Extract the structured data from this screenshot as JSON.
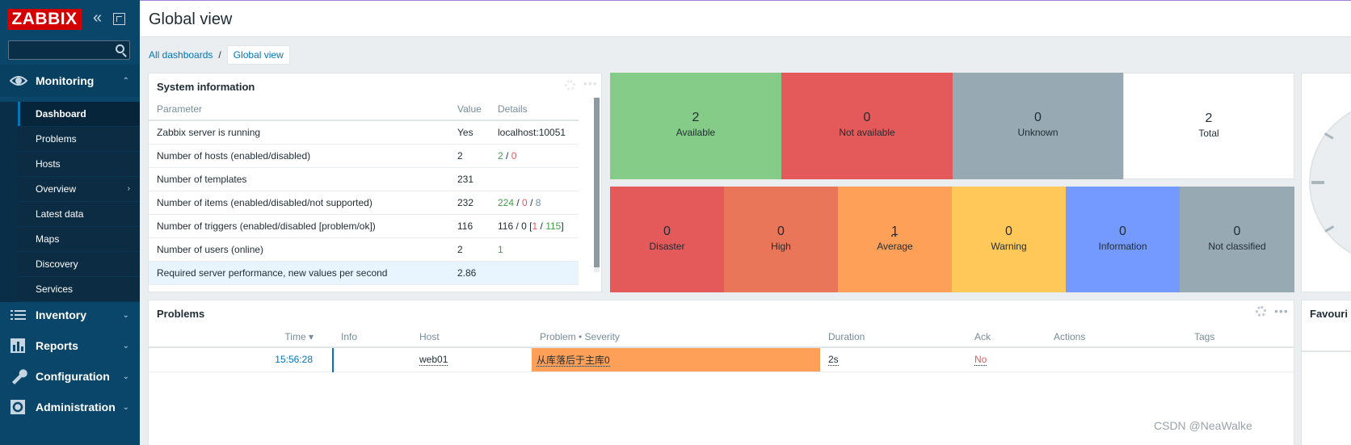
{
  "sidebar": {
    "logo": "ZABBIX",
    "collapse_icon": "«",
    "search_placeholder": "",
    "monitoring": {
      "label": "Monitoring",
      "chevron": "⌃"
    },
    "monitoring_items": [
      {
        "label": "Dashboard"
      },
      {
        "label": "Problems"
      },
      {
        "label": "Hosts"
      },
      {
        "label": "Overview",
        "chevron": "›"
      },
      {
        "label": "Latest data"
      },
      {
        "label": "Maps"
      },
      {
        "label": "Discovery"
      },
      {
        "label": "Services"
      }
    ],
    "sections": [
      {
        "label": "Inventory",
        "icon": "list-icon",
        "chevron": "⌄"
      },
      {
        "label": "Reports",
        "icon": "bar-chart-icon",
        "chevron": "⌄"
      },
      {
        "label": "Configuration",
        "icon": "wrench-icon",
        "chevron": "⌄"
      },
      {
        "label": "Administration",
        "icon": "cog-box-icon",
        "chevron": "⌄"
      }
    ]
  },
  "header": {
    "title": "Global view"
  },
  "breadcrumb": {
    "root": "All dashboards",
    "separator": "/",
    "current": "Global view"
  },
  "system_info": {
    "title": "System information",
    "columns": [
      "Parameter",
      "Value",
      "Details"
    ],
    "rows": [
      {
        "param": "Zabbix server is running",
        "value": "Yes",
        "details": "localhost:10051"
      },
      {
        "param": "Number of hosts (enabled/disabled)",
        "value": "2",
        "d1": "2",
        "s1": " / ",
        "d2": "0"
      },
      {
        "param": "Number of templates",
        "value": "231"
      },
      {
        "param": "Number of items (enabled/disabled/not supported)",
        "value": "232",
        "d1": "224",
        "s1": " / ",
        "d2": "0",
        "s2": " / ",
        "d3": "8"
      },
      {
        "param": "Number of triggers (enabled/disabled [problem/ok])",
        "value": "116",
        "d0": "116 / 0 [",
        "d1": "1",
        "s1": " / ",
        "d2": "115",
        "d3": "]"
      },
      {
        "param": "Number of users (online)",
        "value": "2",
        "d1": "1"
      },
      {
        "param": "Required server performance, new values per second",
        "value": "2.86"
      }
    ]
  },
  "host_availability": [
    {
      "count": "2",
      "label": "Available",
      "color": "#86cc89"
    },
    {
      "count": "0",
      "label": "Not available",
      "color": "#e45959"
    },
    {
      "count": "0",
      "label": "Unknown",
      "color": "#97aab3"
    },
    {
      "count": "2",
      "label": "Total",
      "color": "#ffffff"
    }
  ],
  "problems_by_severity": [
    {
      "count": "0",
      "label": "Disaster",
      "color": "#e45959"
    },
    {
      "count": "0",
      "label": "High",
      "color": "#e97659"
    },
    {
      "count": "1",
      "label": "Average",
      "color": "#ffa059"
    },
    {
      "count": "0",
      "label": "Warning",
      "color": "#ffc859"
    },
    {
      "count": "0",
      "label": "Information",
      "color": "#7499ff"
    },
    {
      "count": "0",
      "label": "Not classified",
      "color": "#97aab3"
    }
  ],
  "problems": {
    "title": "Problems",
    "columns": {
      "time": "Time ▾",
      "info": "Info",
      "host": "Host",
      "problem": "Problem • Severity",
      "duration": "Duration",
      "ack": "Ack",
      "actions": "Actions",
      "tags": "Tags"
    },
    "rows": [
      {
        "time": "15:56:28",
        "host": "web01",
        "problem": "从库落后于主库0",
        "duration": "2s",
        "ack": "No"
      }
    ]
  },
  "favourites": {
    "title": "Favouri"
  },
  "watermark": "CSDN @NeaWalke"
}
